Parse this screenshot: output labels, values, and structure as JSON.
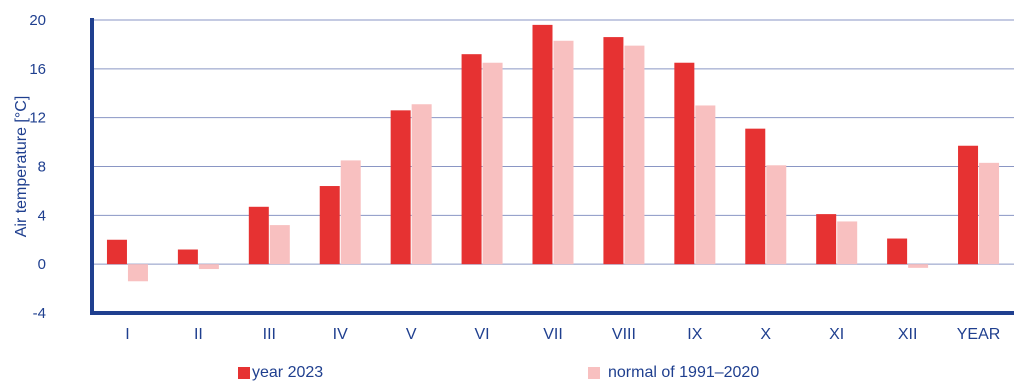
{
  "chart_data": {
    "type": "bar",
    "title": "",
    "xlabel": "",
    "ylabel": "Air temperature [°C]",
    "ylim": [
      -4,
      20
    ],
    "yticks": [
      -4,
      0,
      4,
      8,
      12,
      16,
      20
    ],
    "grid": true,
    "legend_position": "bottom",
    "categories": [
      "I",
      "II",
      "III",
      "IV",
      "V",
      "VI",
      "VII",
      "VIII",
      "IX",
      "X",
      "XI",
      "XII",
      "YEAR"
    ],
    "series": [
      {
        "name": "year 2023",
        "color": "#e63232",
        "values": [
          2.0,
          1.2,
          4.7,
          6.4,
          12.6,
          17.2,
          19.6,
          18.6,
          16.5,
          11.1,
          4.1,
          2.1,
          9.7
        ]
      },
      {
        "name": "normal of 1991–2020",
        "color": "#f8c0c0",
        "values": [
          -1.4,
          -0.4,
          3.2,
          8.5,
          13.1,
          16.5,
          18.3,
          17.9,
          13.0,
          8.1,
          3.5,
          -0.3,
          8.3
        ]
      }
    ]
  }
}
